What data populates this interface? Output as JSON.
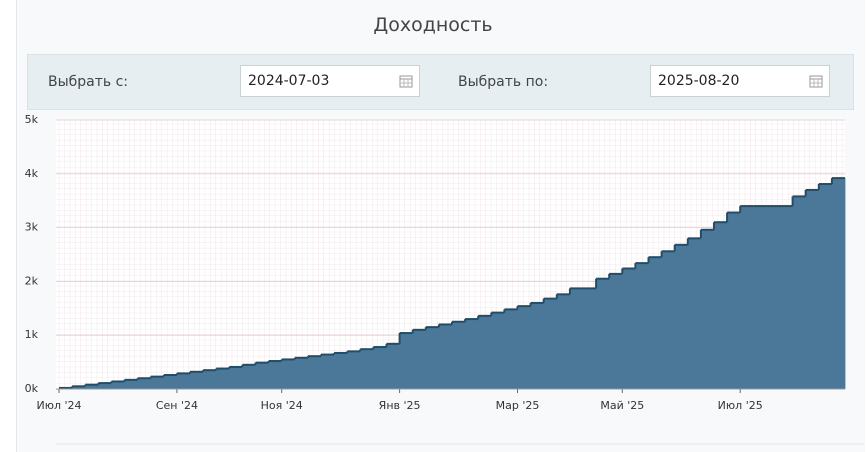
{
  "header": {
    "title": "Доходность"
  },
  "filters": {
    "from_label": "Выбрать с:",
    "from_value": "2024-07-03",
    "to_label": "Выбрать по:",
    "to_value": "2025-08-20"
  },
  "chart_data": {
    "type": "step-area",
    "color": "#4b7898",
    "line_color": "#1f4e6a",
    "categories": [
      "Июл '24",
      null,
      null,
      null,
      null,
      null,
      null,
      null,
      null,
      "Сен '24",
      null,
      null,
      null,
      null,
      null,
      null,
      null,
      "Ноя '24",
      null,
      null,
      null,
      null,
      null,
      null,
      null,
      null,
      "Янв '25",
      null,
      null,
      null,
      null,
      null,
      null,
      null,
      null,
      "Мар '25",
      null,
      null,
      null,
      null,
      null,
      null,
      null,
      "Май '25",
      null,
      null,
      null,
      null,
      null,
      null,
      null,
      null,
      "Июл '25",
      null,
      null,
      null,
      null,
      null,
      null,
      null
    ],
    "values": [
      20,
      50,
      80,
      110,
      140,
      170,
      200,
      230,
      260,
      290,
      320,
      350,
      380,
      410,
      450,
      490,
      520,
      550,
      580,
      610,
      640,
      670,
      700,
      740,
      780,
      840,
      1040,
      1100,
      1150,
      1200,
      1250,
      1300,
      1360,
      1420,
      1480,
      1540,
      1600,
      1680,
      1760,
      1870,
      1870,
      2050,
      2140,
      2240,
      2340,
      2450,
      2560,
      2680,
      2800,
      2960,
      3100,
      3280,
      3400,
      3400,
      3400,
      3400,
      3580,
      3700,
      3810,
      3920
    ],
    "ylim": [
      0,
      5000
    ],
    "yticks": [
      {
        "value": 0,
        "label": "0k"
      },
      {
        "value": 1000,
        "label": "1k"
      },
      {
        "value": 2000,
        "label": "2k"
      },
      {
        "value": 3000,
        "label": "3k"
      },
      {
        "value": 4000,
        "label": "4k"
      },
      {
        "value": 5000,
        "label": "5k"
      }
    ]
  }
}
